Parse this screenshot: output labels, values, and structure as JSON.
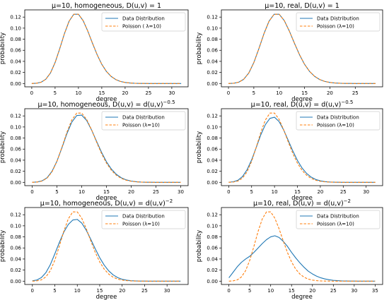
{
  "chart_data": [
    {
      "type": "line",
      "title": "μ=10, homogeneous, D(u,v) = 1",
      "xlabel": "degree",
      "ylabel": "probability",
      "xlim": [
        -1.5,
        33.5
      ],
      "ylim": [
        -0.006,
        0.133
      ],
      "xticks": [
        0,
        5,
        10,
        15,
        20,
        25,
        30
      ],
      "yticks": [
        0.0,
        0.02,
        0.04,
        0.06,
        0.08,
        0.1,
        0.12
      ],
      "legend_position": "top-right",
      "series": [
        {
          "name": "Data Distribution",
          "color": "#1f77b4",
          "dash": "solid",
          "x": [
            0,
            1,
            2,
            3,
            4,
            5,
            6,
            7,
            8,
            9,
            10,
            11,
            12,
            13,
            14,
            15,
            16,
            17,
            18,
            19,
            20,
            21,
            22,
            23,
            24,
            25,
            26,
            27,
            28,
            29,
            30,
            31,
            32
          ],
          "y": [
            0.0,
            0.0005,
            0.0023,
            0.0076,
            0.0189,
            0.0378,
            0.0631,
            0.0901,
            0.1126,
            0.1251,
            0.1251,
            0.1137,
            0.0948,
            0.0729,
            0.0521,
            0.0347,
            0.0217,
            0.0128,
            0.0071,
            0.0037,
            0.0019,
            0.0009,
            0.0004,
            0.0002,
            0.0001,
            0,
            0,
            0,
            0,
            0,
            0,
            0,
            0
          ]
        },
        {
          "name": "Poisson ( λ=10)",
          "color": "#ff7f0e",
          "dash": "dashed",
          "x": [
            0,
            1,
            2,
            3,
            4,
            5,
            6,
            7,
            8,
            9,
            10,
            11,
            12,
            13,
            14,
            15,
            16,
            17,
            18,
            19,
            20,
            21,
            22,
            23,
            24,
            25,
            26,
            27,
            28,
            29,
            30,
            31,
            32
          ],
          "y": [
            0.0,
            0.0005,
            0.0023,
            0.0076,
            0.0189,
            0.0378,
            0.0631,
            0.0901,
            0.1126,
            0.1251,
            0.1251,
            0.1137,
            0.0948,
            0.0729,
            0.0521,
            0.0347,
            0.0217,
            0.0128,
            0.0071,
            0.0037,
            0.0019,
            0.0009,
            0.0004,
            0.0002,
            0.0001,
            0,
            0,
            0,
            0,
            0,
            0,
            0,
            0
          ]
        }
      ]
    },
    {
      "type": "line",
      "title": "μ=10, real, D(u,v) = 1",
      "xlabel": "degree",
      "ylabel": "probability",
      "xlim": [
        -1.4,
        30.4
      ],
      "ylim": [
        -0.006,
        0.133
      ],
      "xticks": [
        0,
        5,
        10,
        15,
        20,
        25
      ],
      "yticks": [
        0.0,
        0.02,
        0.04,
        0.06,
        0.08,
        0.1,
        0.12
      ],
      "legend_position": "top-right",
      "series": [
        {
          "name": "Data Distribution",
          "color": "#1f77b4",
          "dash": "solid",
          "x": [
            0,
            1,
            2,
            3,
            4,
            5,
            6,
            7,
            8,
            9,
            10,
            11,
            12,
            13,
            14,
            15,
            16,
            17,
            18,
            19,
            20,
            21,
            22,
            23,
            24,
            25,
            26,
            27,
            28,
            29
          ],
          "y": [
            0.0,
            0.0005,
            0.0023,
            0.0076,
            0.0189,
            0.0378,
            0.0631,
            0.0901,
            0.1126,
            0.1251,
            0.1251,
            0.1137,
            0.0948,
            0.0729,
            0.0521,
            0.0347,
            0.0217,
            0.0128,
            0.0071,
            0.0037,
            0.0019,
            0.0009,
            0.0004,
            0.0002,
            0.0001,
            0,
            0,
            0,
            0,
            0
          ]
        },
        {
          "name": "Poisson (λ=10)",
          "color": "#ff7f0e",
          "dash": "dashed",
          "x": [
            0,
            1,
            2,
            3,
            4,
            5,
            6,
            7,
            8,
            9,
            10,
            11,
            12,
            13,
            14,
            15,
            16,
            17,
            18,
            19,
            20,
            21,
            22,
            23,
            24,
            25,
            26,
            27,
            28,
            29
          ],
          "y": [
            0.0,
            0.0005,
            0.0023,
            0.0076,
            0.0189,
            0.0378,
            0.0631,
            0.0901,
            0.1126,
            0.1251,
            0.1251,
            0.1137,
            0.0948,
            0.0729,
            0.0521,
            0.0347,
            0.0217,
            0.0128,
            0.0071,
            0.0037,
            0.0019,
            0.0009,
            0.0004,
            0.0002,
            0.0001,
            0,
            0,
            0,
            0,
            0
          ]
        }
      ]
    },
    {
      "type": "line",
      "title": "μ=10, homogeneous, D(u,v) = d(u,v)^−0.5",
      "xlabel": "degree",
      "ylabel": "probability",
      "xlim": [
        -1.5,
        31.5
      ],
      "ylim": [
        -0.006,
        0.133
      ],
      "xticks": [
        0,
        5,
        10,
        15,
        20,
        25,
        30
      ],
      "yticks": [
        0.0,
        0.02,
        0.04,
        0.06,
        0.08,
        0.1,
        0.12
      ],
      "legend_position": "top-right",
      "series": [
        {
          "name": "Data Distribution",
          "color": "#1f77b4",
          "dash": "solid",
          "x": [
            0,
            1,
            2,
            3,
            4,
            5,
            6,
            7,
            8,
            9,
            10,
            11,
            12,
            13,
            14,
            15,
            16,
            17,
            18,
            19,
            20,
            21,
            22,
            23,
            24,
            25,
            26,
            27,
            28,
            29,
            30
          ],
          "y": [
            0.0001,
            0.0006,
            0.0027,
            0.0083,
            0.0198,
            0.0381,
            0.0621,
            0.0876,
            0.1087,
            0.1206,
            0.1214,
            0.1118,
            0.0945,
            0.0742,
            0.0544,
            0.0372,
            0.0239,
            0.0144,
            0.0082,
            0.0044,
            0.0023,
            0.0011,
            0.0005,
            0.0002,
            0.0001,
            0,
            0,
            0,
            0,
            0,
            0
          ]
        },
        {
          "name": "Poisson (λ=10)",
          "color": "#ff7f0e",
          "dash": "dashed",
          "x": [
            0,
            1,
            2,
            3,
            4,
            5,
            6,
            7,
            8,
            9,
            10,
            11,
            12,
            13,
            14,
            15,
            16,
            17,
            18,
            19,
            20,
            21,
            22,
            23,
            24,
            25,
            26,
            27,
            28,
            29,
            30
          ],
          "y": [
            0.0,
            0.0005,
            0.0023,
            0.0076,
            0.0189,
            0.0378,
            0.0631,
            0.0901,
            0.1126,
            0.1251,
            0.1251,
            0.1137,
            0.0948,
            0.0729,
            0.0521,
            0.0347,
            0.0217,
            0.0128,
            0.0071,
            0.0037,
            0.0019,
            0.0009,
            0.0004,
            0.0002,
            0.0001,
            0,
            0,
            0,
            0,
            0,
            0
          ]
        }
      ]
    },
    {
      "type": "line",
      "title": "μ=10, real, D(u,v) = d(u,v)^−0.5",
      "xlabel": "degree",
      "ylabel": "probability",
      "xlim": [
        -1.6,
        33.6
      ],
      "ylim": [
        -0.006,
        0.133
      ],
      "xticks": [
        0,
        5,
        10,
        15,
        20,
        25,
        30
      ],
      "yticks": [
        0.0,
        0.02,
        0.04,
        0.06,
        0.08,
        0.1,
        0.12
      ],
      "legend_position": "top-right",
      "series": [
        {
          "name": "Data Distribution",
          "color": "#1f77b4",
          "dash": "solid",
          "x": [
            0,
            1,
            2,
            3,
            4,
            5,
            6,
            7,
            8,
            9,
            10,
            11,
            12,
            13,
            14,
            15,
            16,
            17,
            18,
            19,
            20,
            21,
            22,
            23,
            24,
            25,
            26,
            27,
            28,
            29,
            30,
            31,
            32
          ],
          "y": [
            0.0002,
            0.001,
            0.0037,
            0.0103,
            0.0226,
            0.0405,
            0.0628,
            0.0857,
            0.1042,
            0.1155,
            0.1176,
            0.1097,
            0.0945,
            0.0757,
            0.0566,
            0.0396,
            0.026,
            0.0161,
            0.0094,
            0.0052,
            0.0027,
            0.0013,
            0.0006,
            0.0003,
            0.0001,
            0,
            0,
            0,
            0,
            0,
            0,
            0,
            0
          ]
        },
        {
          "name": "Poisson (λ=10)",
          "color": "#ff7f0e",
          "dash": "dashed",
          "x": [
            0,
            1,
            2,
            3,
            4,
            5,
            6,
            7,
            8,
            9,
            10,
            11,
            12,
            13,
            14,
            15,
            16,
            17,
            18,
            19,
            20,
            21,
            22,
            23,
            24,
            25,
            26,
            27,
            28,
            29,
            30,
            31,
            32
          ],
          "y": [
            0.0,
            0.0005,
            0.0023,
            0.0076,
            0.0189,
            0.0378,
            0.0631,
            0.0901,
            0.1126,
            0.1251,
            0.1251,
            0.1137,
            0.0948,
            0.0729,
            0.0521,
            0.0347,
            0.0217,
            0.0128,
            0.0071,
            0.0037,
            0.0019,
            0.0009,
            0.0004,
            0.0002,
            0.0001,
            0,
            0,
            0,
            0,
            0,
            0,
            0,
            0
          ]
        }
      ]
    },
    {
      "type": "line",
      "title": "μ=10, homogeneous, D(u,v) = d(u,v)^−2",
      "xlabel": "degree",
      "ylabel": "probability",
      "xlim": [
        -1.7,
        34.7
      ],
      "ylim": [
        -0.006,
        0.133
      ],
      "xticks": [
        0,
        5,
        10,
        15,
        20,
        25,
        30
      ],
      "yticks": [
        0.0,
        0.02,
        0.04,
        0.06,
        0.08,
        0.1,
        0.12
      ],
      "legend_position": "top-right",
      "series": [
        {
          "name": "Data Distribution",
          "color": "#1f77b4",
          "dash": "solid",
          "x": [
            0,
            1,
            2,
            3,
            4,
            5,
            6,
            7,
            8,
            9,
            10,
            11,
            12,
            13,
            14,
            15,
            16,
            17,
            18,
            19,
            20,
            21,
            22,
            23,
            24,
            25,
            26,
            27,
            28,
            29,
            30,
            31,
            32,
            33
          ],
          "y": [
            0.0006,
            0.0021,
            0.0064,
            0.0153,
            0.0299,
            0.0493,
            0.0697,
            0.0885,
            0.1024,
            0.1104,
            0.1115,
            0.1049,
            0.0921,
            0.0758,
            0.0585,
            0.0424,
            0.029,
            0.0186,
            0.0113,
            0.0064,
            0.0034,
            0.0017,
            0.0008,
            0.0004,
            0.0002,
            0.0001,
            0,
            0,
            0,
            0,
            0,
            0,
            0,
            0
          ]
        },
        {
          "name": "Poisson (λ=10)",
          "color": "#ff7f0e",
          "dash": "dashed",
          "x": [
            0,
            1,
            2,
            3,
            4,
            5,
            6,
            7,
            8,
            9,
            10,
            11,
            12,
            13,
            14,
            15,
            16,
            17,
            18,
            19,
            20,
            21,
            22,
            23,
            24,
            25,
            26,
            27,
            28,
            29,
            30,
            31,
            32,
            33
          ],
          "y": [
            0.0,
            0.0005,
            0.0023,
            0.0076,
            0.0189,
            0.0378,
            0.0631,
            0.0901,
            0.1126,
            0.1251,
            0.1251,
            0.1137,
            0.0948,
            0.0729,
            0.0521,
            0.0347,
            0.0217,
            0.0128,
            0.0071,
            0.0037,
            0.0019,
            0.0009,
            0.0004,
            0.0002,
            0.0001,
            0,
            0,
            0,
            0,
            0,
            0,
            0,
            0,
            0
          ]
        }
      ]
    },
    {
      "type": "line",
      "title": "μ=10, real, D(u,v) = d(u,v)^−2",
      "xlabel": "degree",
      "ylabel": "probability",
      "xlim": [
        -1.8,
        36.8
      ],
      "ylim": [
        -0.006,
        0.133
      ],
      "xticks": [
        0,
        5,
        10,
        15,
        20,
        25,
        30,
        35
      ],
      "yticks": [
        0.0,
        0.02,
        0.04,
        0.06,
        0.08,
        0.1,
        0.12
      ],
      "legend_position": "top-right",
      "series": [
        {
          "name": "Data Distribution",
          "color": "#1f77b4",
          "dash": "solid",
          "x": [
            0,
            1,
            2,
            3,
            4,
            5,
            6,
            7,
            8,
            9,
            10,
            11,
            12,
            13,
            14,
            15,
            16,
            17,
            18,
            19,
            20,
            21,
            22,
            23,
            24,
            25,
            26,
            27,
            28,
            29,
            30,
            31,
            32,
            33,
            34,
            35
          ],
          "y": [
            0.006,
            0.016,
            0.026,
            0.034,
            0.04,
            0.045,
            0.052,
            0.06,
            0.068,
            0.075,
            0.08,
            0.082,
            0.079,
            0.072,
            0.063,
            0.052,
            0.042,
            0.033,
            0.025,
            0.018,
            0.013,
            0.009,
            0.006,
            0.004,
            0.0025,
            0.0015,
            0.0009,
            0.0005,
            0.0003,
            0.0002,
            0.0001,
            0,
            0,
            0,
            0,
            0
          ]
        },
        {
          "name": "Poisson (λ=10)",
          "color": "#ff7f0e",
          "dash": "dashed",
          "x": [
            0,
            1,
            2,
            3,
            4,
            5,
            6,
            7,
            8,
            9,
            10,
            11,
            12,
            13,
            14,
            15,
            16,
            17,
            18,
            19,
            20,
            21,
            22,
            23,
            24,
            25,
            26,
            27,
            28,
            29,
            30,
            31,
            32,
            33,
            34,
            35
          ],
          "y": [
            0.0,
            0.0005,
            0.0023,
            0.0076,
            0.0189,
            0.0378,
            0.0631,
            0.0901,
            0.1126,
            0.1251,
            0.1251,
            0.1137,
            0.0948,
            0.0729,
            0.0521,
            0.0347,
            0.0217,
            0.0128,
            0.0071,
            0.0037,
            0.0019,
            0.0009,
            0.0004,
            0.0002,
            0.0001,
            0,
            0,
            0,
            0,
            0,
            0,
            0,
            0,
            0,
            0,
            0
          ]
        }
      ]
    }
  ]
}
